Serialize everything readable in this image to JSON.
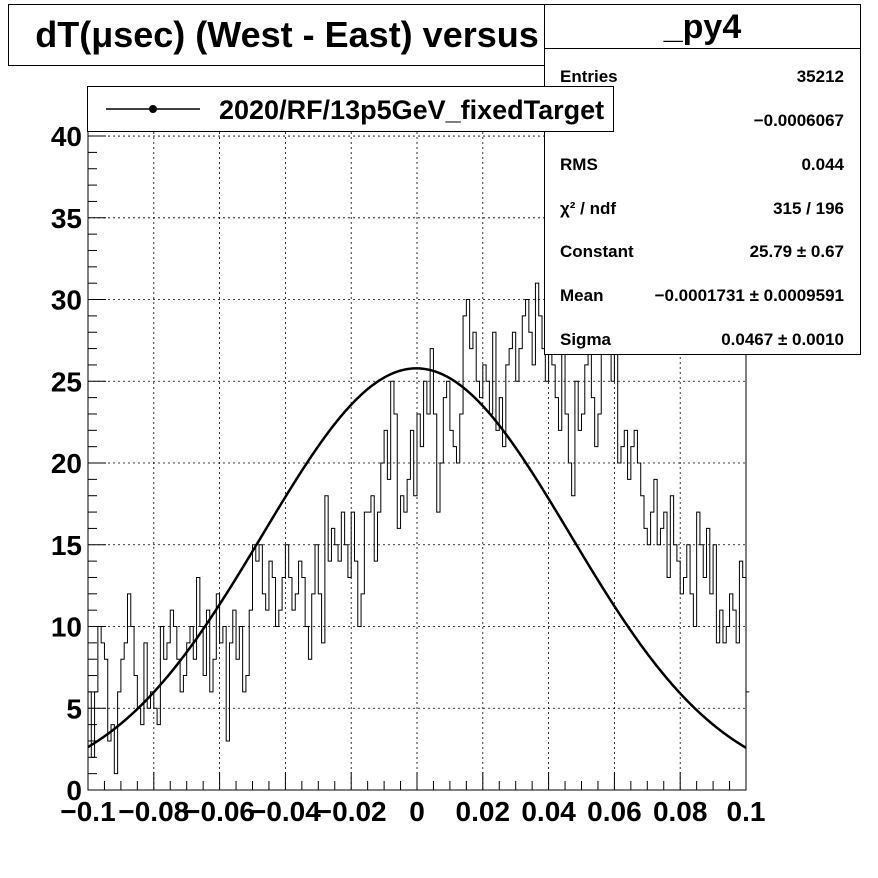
{
  "title": "dT(μsec) (West - East) versus Z",
  "stats": {
    "name": "_py4",
    "rows": [
      {
        "label": "Entries",
        "value": "35212"
      },
      {
        "label": "",
        "value": "−0.0006067"
      },
      {
        "label": "RMS",
        "value": "0.044"
      },
      {
        "label": "χ² / ndf",
        "value": "315 / 196"
      },
      {
        "label": "Constant",
        "value": "25.79 ± 0.67"
      },
      {
        "label": "Mean",
        "value": "−0.0001731 ± 0.0009591"
      },
      {
        "label": "Sigma",
        "value": "0.0467 ± 0.0010"
      }
    ]
  },
  "legend": {
    "entry": "2020/RF/13p5GeV_fixedTarget"
  },
  "chart_data": {
    "type": "line",
    "xlim": [
      -0.1,
      0.1
    ],
    "ylim": [
      0,
      43
    ],
    "x_ticks": [
      -0.1,
      -0.08,
      -0.06,
      -0.04,
      -0.02,
      0,
      0.02,
      0.04,
      0.06,
      0.08,
      0.1
    ],
    "x_tick_labels": [
      "−0.1",
      "−0.08",
      "−0.06",
      "−0.04",
      "−0.02",
      "0",
      "0.02",
      "0.04",
      "0.06",
      "0.08",
      "0.1"
    ],
    "y_ticks": [
      0,
      5,
      10,
      15,
      20,
      25,
      30,
      35,
      40
    ],
    "y_tick_labels": [
      "0",
      "5",
      "10",
      "15",
      "20",
      "25",
      "30",
      "35",
      "40"
    ],
    "grid": true,
    "histogram": {
      "name": "2020/RF/13p5GeV_fixedTarget",
      "bin_low": -0.1,
      "bin_width": 0.001,
      "values": [
        6,
        2,
        6,
        10,
        9,
        8,
        3,
        4,
        1,
        6,
        8,
        9,
        12,
        10,
        7,
        5,
        4,
        9,
        5,
        6,
        5,
        4,
        10,
        8,
        9,
        11,
        10,
        8,
        6,
        7,
        9,
        10,
        8,
        13,
        10,
        7,
        11,
        6,
        8,
        12,
        9,
        10,
        3,
        9,
        11,
        8,
        10,
        6,
        7,
        11,
        15,
        14,
        15,
        12,
        11,
        14,
        13,
        10,
        11,
        13,
        15,
        13,
        11,
        12,
        14,
        13,
        10,
        8,
        12,
        15,
        12,
        9,
        18,
        14,
        16,
        15,
        14,
        17,
        15,
        13,
        17,
        14,
        10,
        12,
        17,
        17,
        18,
        14,
        17,
        20,
        22,
        19,
        25,
        23,
        16,
        18,
        17,
        19,
        22,
        18,
        23,
        21,
        25,
        23,
        27,
        23,
        17,
        20,
        24,
        25,
        22,
        21,
        20,
        23,
        29,
        30,
        27,
        28,
        25,
        24,
        26,
        25,
        23,
        28,
        22,
        24,
        21,
        26,
        27,
        28,
        25,
        27,
        29,
        30,
        28,
        26,
        31,
        29,
        27,
        25,
        30,
        26,
        24,
        22,
        28,
        23,
        20,
        18,
        25,
        22,
        23,
        26,
        27,
        24,
        21,
        23,
        29,
        27,
        29,
        25,
        27,
        20,
        21,
        22,
        19,
        21,
        22,
        20,
        18,
        16,
        15,
        17,
        19,
        15,
        16,
        17,
        13,
        18,
        15,
        14,
        12,
        13,
        15,
        12,
        10,
        17,
        15,
        13,
        16,
        12,
        15,
        9,
        11,
        9,
        10,
        12,
        11,
        9,
        14,
        13,
        6
      ]
    },
    "fit": {
      "name": "gaus",
      "constant": 25.79,
      "mean": -0.0001731,
      "sigma": 0.0467
    }
  }
}
